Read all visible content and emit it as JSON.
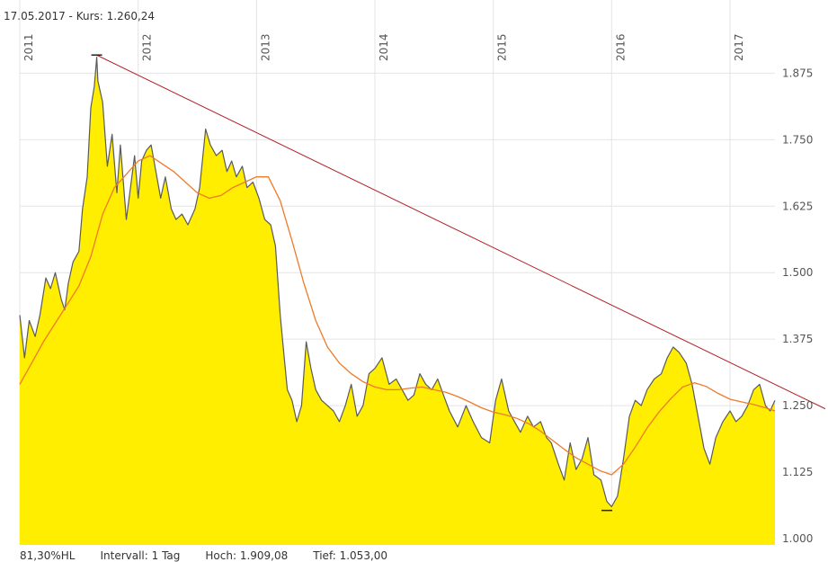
{
  "header": {
    "date": "17.05.2017",
    "separator": " - ",
    "price_label": "Kurs:",
    "price_value": "1.260,24"
  },
  "footer": {
    "percent": "81,30%HL",
    "interval": "Intervall: 1 Tag",
    "high": "Hoch: 1.909,08",
    "low": "Tief: 1.053,00"
  },
  "colors": {
    "area_fill": "#ffee00",
    "price_line": "#5a5a5a",
    "moving_average": "#ef7a2a",
    "trendline": "#b02028",
    "grid": "#e4e4e4"
  },
  "chart_data": {
    "type": "area",
    "title": "",
    "xlabel": "",
    "ylabel": "",
    "ylim": [
      1000,
      1950
    ],
    "xlim": [
      2011.0,
      2017.38
    ],
    "yticks": [
      1000,
      1125,
      1250,
      1375,
      1500,
      1625,
      1750,
      1875
    ],
    "ytick_labels": [
      "1.000",
      "1.125",
      "1.250",
      "1.375",
      "1.500",
      "1.625",
      "1.750",
      "1.875"
    ],
    "xticks": [
      2011,
      2012,
      2013,
      2014,
      2015,
      2016,
      2017
    ],
    "xtick_labels": [
      "2011",
      "2012",
      "2013",
      "2014",
      "2015",
      "2016",
      "2017"
    ],
    "grid": true,
    "series": [
      {
        "kind": "price",
        "x": [
          2011.0,
          2011.04,
          2011.08,
          2011.13,
          2011.17,
          2011.22,
          2011.26,
          2011.3,
          2011.35,
          2011.38,
          2011.41,
          2011.45,
          2011.5,
          2011.53,
          2011.57,
          2011.6,
          2011.63,
          2011.65,
          2011.66,
          2011.7,
          2011.74,
          2011.78,
          2011.82,
          2011.85,
          2011.9,
          2011.93,
          2011.97,
          2012.0,
          2012.03,
          2012.07,
          2012.11,
          2012.15,
          2012.19,
          2012.23,
          2012.28,
          2012.32,
          2012.37,
          2012.42,
          2012.48,
          2012.52,
          2012.57,
          2012.61,
          2012.66,
          2012.71,
          2012.75,
          2012.79,
          2012.83,
          2012.88,
          2012.92,
          2012.97,
          2013.02,
          2013.07,
          2013.12,
          2013.16,
          2013.2,
          2013.23,
          2013.26,
          2013.3,
          2013.34,
          2013.38,
          2013.42,
          2013.46,
          2013.5,
          2013.55,
          2013.6,
          2013.65,
          2013.7,
          2013.75,
          2013.8,
          2013.85,
          2013.9,
          2013.95,
          2014.0,
          2014.06,
          2014.12,
          2014.18,
          2014.23,
          2014.28,
          2014.33,
          2014.38,
          2014.43,
          2014.48,
          2014.53,
          2014.58,
          2014.63,
          2014.7,
          2014.77,
          2014.83,
          2014.9,
          2014.97,
          2015.02,
          2015.07,
          2015.13,
          2015.18,
          2015.23,
          2015.29,
          2015.34,
          2015.4,
          2015.45,
          2015.49,
          2015.55,
          2015.6,
          2015.65,
          2015.7,
          2015.75,
          2015.8,
          2015.85,
          2015.91,
          2015.96,
          2016.0,
          2016.05,
          2016.1,
          2016.15,
          2016.2,
          2016.25,
          2016.3,
          2016.36,
          2016.42,
          2016.47,
          2016.52,
          2016.57,
          2016.63,
          2016.68,
          2016.73,
          2016.78,
          2016.83,
          2016.88,
          2016.94,
          2017.0,
          2017.05,
          2017.1,
          2017.15,
          2017.2,
          2017.25,
          2017.3,
          2017.34,
          2017.38
        ],
        "values": [
          1420,
          1340,
          1410,
          1380,
          1420,
          1490,
          1470,
          1500,
          1450,
          1430,
          1480,
          1520,
          1540,
          1620,
          1680,
          1810,
          1850,
          1905,
          1860,
          1820,
          1700,
          1760,
          1650,
          1740,
          1600,
          1650,
          1720,
          1640,
          1710,
          1730,
          1740,
          1690,
          1640,
          1680,
          1620,
          1600,
          1610,
          1590,
          1620,
          1660,
          1770,
          1740,
          1720,
          1730,
          1690,
          1710,
          1680,
          1700,
          1660,
          1670,
          1640,
          1600,
          1590,
          1550,
          1420,
          1350,
          1280,
          1260,
          1220,
          1250,
          1370,
          1320,
          1280,
          1260,
          1250,
          1240,
          1220,
          1250,
          1290,
          1230,
          1250,
          1310,
          1320,
          1340,
          1290,
          1300,
          1280,
          1260,
          1270,
          1310,
          1290,
          1280,
          1300,
          1270,
          1240,
          1210,
          1250,
          1220,
          1190,
          1180,
          1260,
          1300,
          1240,
          1220,
          1200,
          1230,
          1210,
          1220,
          1190,
          1180,
          1140,
          1110,
          1180,
          1130,
          1150,
          1190,
          1120,
          1110,
          1070,
          1060,
          1080,
          1150,
          1230,
          1260,
          1250,
          1280,
          1300,
          1310,
          1340,
          1360,
          1350,
          1330,
          1290,
          1230,
          1170,
          1140,
          1190,
          1220,
          1240,
          1220,
          1230,
          1250,
          1280,
          1290,
          1250,
          1240,
          1260
        ]
      },
      {
        "kind": "moving_average",
        "x": [
          2011.0,
          2011.1,
          2011.2,
          2011.3,
          2011.4,
          2011.5,
          2011.6,
          2011.7,
          2011.8,
          2011.9,
          2012.0,
          2012.1,
          2012.2,
          2012.3,
          2012.4,
          2012.5,
          2012.6,
          2012.7,
          2012.8,
          2012.9,
          2013.0,
          2013.1,
          2013.2,
          2013.3,
          2013.4,
          2013.5,
          2013.6,
          2013.7,
          2013.8,
          2013.9,
          2014.0,
          2014.1,
          2014.2,
          2014.3,
          2014.4,
          2014.5,
          2014.6,
          2014.7,
          2014.8,
          2014.9,
          2015.0,
          2015.1,
          2015.2,
          2015.3,
          2015.4,
          2015.5,
          2015.6,
          2015.7,
          2015.8,
          2015.9,
          2016.0,
          2016.1,
          2016.2,
          2016.3,
          2016.4,
          2016.5,
          2016.6,
          2016.7,
          2016.8,
          2016.9,
          2017.0,
          2017.1,
          2017.2,
          2017.3,
          2017.38
        ],
        "values": [
          1290,
          1330,
          1370,
          1405,
          1440,
          1475,
          1530,
          1610,
          1660,
          1685,
          1710,
          1720,
          1705,
          1690,
          1670,
          1650,
          1640,
          1645,
          1660,
          1670,
          1680,
          1680,
          1635,
          1560,
          1480,
          1410,
          1360,
          1330,
          1310,
          1295,
          1285,
          1280,
          1280,
          1283,
          1285,
          1280,
          1275,
          1267,
          1257,
          1246,
          1238,
          1233,
          1226,
          1216,
          1202,
          1185,
          1168,
          1152,
          1140,
          1128,
          1120,
          1140,
          1172,
          1208,
          1238,
          1263,
          1285,
          1293,
          1286,
          1273,
          1262,
          1257,
          1252,
          1246,
          1240
        ]
      },
      {
        "kind": "trendline",
        "x": [
          2011.65,
          2017.38
        ],
        "values": [
          1909,
          1290
        ]
      }
    ],
    "annotations": [
      {
        "kind": "high_marker",
        "x": 2011.65,
        "value": 1909.08
      },
      {
        "kind": "low_marker",
        "x": 2015.96,
        "value": 1053.0
      }
    ]
  }
}
